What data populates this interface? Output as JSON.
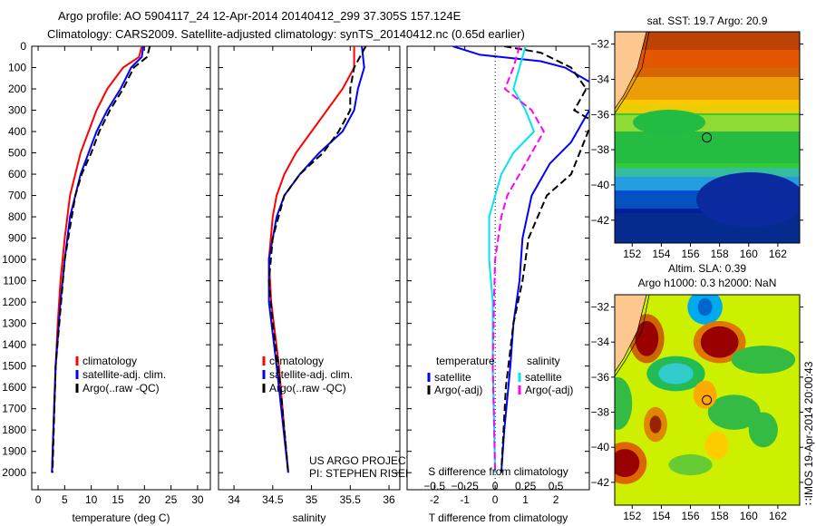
{
  "header": {
    "title1": "Argo profile: AO 5904117_24 12-Apr-2014 20140412_299 37.305S 157.124E",
    "title2": "Climatology: CARS2009. Satellite-adjusted climatology: synTS_20140412.nc (0.65d earlier)"
  },
  "colors": {
    "clim": "#ff0000",
    "sat": "#0000ff",
    "argo": "#000000",
    "sal_sat": "#00e5ee",
    "sal_argo": "#ff00ff"
  },
  "chart_data": [
    {
      "type": "line",
      "id": "temp",
      "xlabel": "temperature (deg C)",
      "xlim": [
        -1.2,
        32.4
      ],
      "ylim": [
        2080,
        0
      ],
      "xticks": [
        0,
        5,
        10,
        15,
        20,
        25,
        30
      ],
      "yticks": [
        0,
        100,
        200,
        300,
        400,
        500,
        600,
        700,
        800,
        900,
        1000,
        1100,
        1200,
        1300,
        1400,
        1500,
        1600,
        1700,
        1800,
        1900,
        2000
      ],
      "legend": [
        "climatology",
        "satellite-adj. clim.",
        "Argo(..raw -QC)"
      ],
      "series": [
        {
          "name": "climatology",
          "depth": [
            0,
            50,
            100,
            200,
            300,
            400,
            500,
            700,
            900,
            1100,
            1300,
            1500,
            1700,
            2000
          ],
          "values": [
            19.5,
            19,
            16,
            13,
            11,
            9.5,
            8,
            6,
            5,
            4.2,
            3.7,
            3.3,
            3,
            2.6
          ]
        },
        {
          "name": "satellite-adj. clim.",
          "depth": [
            0,
            50,
            100,
            200,
            300,
            400,
            500,
            600,
            700,
            800,
            1000,
            1200,
            1500,
            2000
          ],
          "values": [
            19.8,
            19.5,
            17.5,
            15.5,
            13,
            11,
            9.5,
            8,
            7,
            6,
            5,
            4.2,
            3.3,
            2.6
          ]
        },
        {
          "name": "Argo(..raw -QC)",
          "depth": [
            0,
            50,
            100,
            200,
            300,
            400,
            500,
            600,
            700,
            1000,
            1500,
            2000
          ],
          "values": [
            21,
            20.5,
            18,
            16,
            13.5,
            11.5,
            10,
            8.2,
            7,
            5,
            3.3,
            2.7
          ]
        }
      ]
    },
    {
      "type": "line",
      "id": "sal",
      "xlabel": "salinity",
      "xlim": [
        33.8,
        36.14
      ],
      "ylim": [
        2080,
        0
      ],
      "xticks": [
        34,
        34.5,
        35,
        35.5,
        36
      ],
      "legend": [
        "climatology",
        "satellite-adj. clim.",
        "Argo(..raw -QC)"
      ],
      "annotation": [
        "US ARGO PROJECT",
        "PI: STEPHEN RISER"
      ],
      "series": [
        {
          "name": "climatology",
          "depth": [
            0,
            100,
            200,
            300,
            400,
            500,
            600,
            700,
            800,
            1000,
            1200,
            1500,
            1800,
            2000
          ],
          "values": [
            35.55,
            35.55,
            35.4,
            35.2,
            35.0,
            34.8,
            34.65,
            34.55,
            34.5,
            34.45,
            34.48,
            34.58,
            34.65,
            34.7
          ]
        },
        {
          "name": "satellite-adj. clim.",
          "depth": [
            0,
            100,
            200,
            300,
            400,
            500,
            600,
            700,
            800,
            1000,
            1200,
            1500,
            2000
          ],
          "values": [
            35.65,
            35.68,
            35.6,
            35.55,
            35.4,
            35.1,
            34.85,
            34.65,
            34.55,
            34.45,
            34.45,
            34.55,
            34.7
          ]
        },
        {
          "name": "Argo(..raw -QC)",
          "depth": [
            0,
            100,
            200,
            300,
            400,
            500,
            600,
            700,
            900,
            1100,
            1300,
            1600,
            2000
          ],
          "values": [
            35.7,
            35.55,
            35.5,
            35.5,
            35.35,
            35.15,
            34.85,
            34.65,
            34.5,
            34.45,
            34.5,
            34.6,
            34.7
          ]
        }
      ]
    },
    {
      "type": "line",
      "id": "diff",
      "xlabel": "T difference from climatology",
      "x2label": "S difference from climatology",
      "xlim": [
        -2.9,
        3.1
      ],
      "ylim": [
        2080,
        0
      ],
      "xticks": [
        -2,
        -1,
        0,
        1,
        2
      ],
      "x2ticks": [
        "-0.5",
        "-0.25",
        "0",
        "0.25",
        "0.5"
      ],
      "legend_t_title": "temperature",
      "legend_s_title": "salinity",
      "legend": [
        "satellite",
        "Argo(-adj)",
        "satellite",
        "Argo(-adj)"
      ],
      "series": [
        {
          "name": "T satellite",
          "units": "degC",
          "depth": [
            0,
            40,
            70,
            100,
            200,
            450,
            550,
            700,
            900,
            1100,
            1300,
            1500,
            1800,
            2000
          ],
          "values": [
            -1.4,
            -0.5,
            1.5,
            2.3,
            3.5,
            2.5,
            1.8,
            1.2,
            0.9,
            0.8,
            0.6,
            0.5,
            0.3,
            0.2
          ]
        },
        {
          "name": "T Argo(-adj)",
          "units": "degC",
          "depth": [
            0,
            30,
            100,
            200,
            300,
            350,
            600,
            700,
            900,
            1100,
            1300,
            1600,
            2000
          ],
          "values": [
            0.3,
            1.5,
            2.5,
            3,
            2.6,
            3.2,
            2.5,
            1.7,
            1.1,
            0.9,
            0.6,
            0.35,
            0.2
          ]
        },
        {
          "name": "S satellite",
          "units": "psu",
          "depth": [
            0,
            100,
            200,
            300,
            400,
            500,
            600,
            800,
            1000,
            1200,
            1500,
            2000
          ],
          "values": [
            0.25,
            0.2,
            0.15,
            0.25,
            0.32,
            0.15,
            0.05,
            -0.05,
            -0.05,
            -0.02,
            -0.02,
            0.0
          ]
        },
        {
          "name": "S Argo(-adj)",
          "units": "psu",
          "depth": [
            0,
            100,
            200,
            300,
            400,
            500,
            600,
            700,
            800,
            1000,
            1200,
            1500,
            2000
          ],
          "values": [
            0.2,
            0.15,
            0.08,
            0.3,
            0.4,
            0.3,
            0.2,
            0.1,
            0.05,
            0.0,
            -0.01,
            -0.02,
            0.0
          ]
        }
      ]
    },
    {
      "type": "heatmap",
      "id": "sst_map",
      "title": "sat. SST: 19.7 Argo: 20.9",
      "lon_ticks": [
        "152",
        "154",
        "156",
        "158",
        "160",
        "162"
      ],
      "lat_ticks": [
        "-32",
        "-34",
        "-36",
        "-38",
        "-40",
        "-42"
      ],
      "argo_position": [
        157.124,
        -37.305
      ]
    },
    {
      "type": "heatmap",
      "id": "sla_map",
      "title1": "Altim. SLA: 0.39",
      "title2": "Argo h1000: 0.3 h2000: NaN",
      "lon_ticks": [
        "152",
        "154",
        "156",
        "158",
        "160",
        "162"
      ],
      "lat_ticks": [
        "-32",
        "-34",
        "-36",
        "-38",
        "-40",
        "-42"
      ],
      "argo_position": [
        157.124,
        -37.305
      ],
      "side_label": "IMOS 19-Apr-2014 20:00:43"
    }
  ]
}
